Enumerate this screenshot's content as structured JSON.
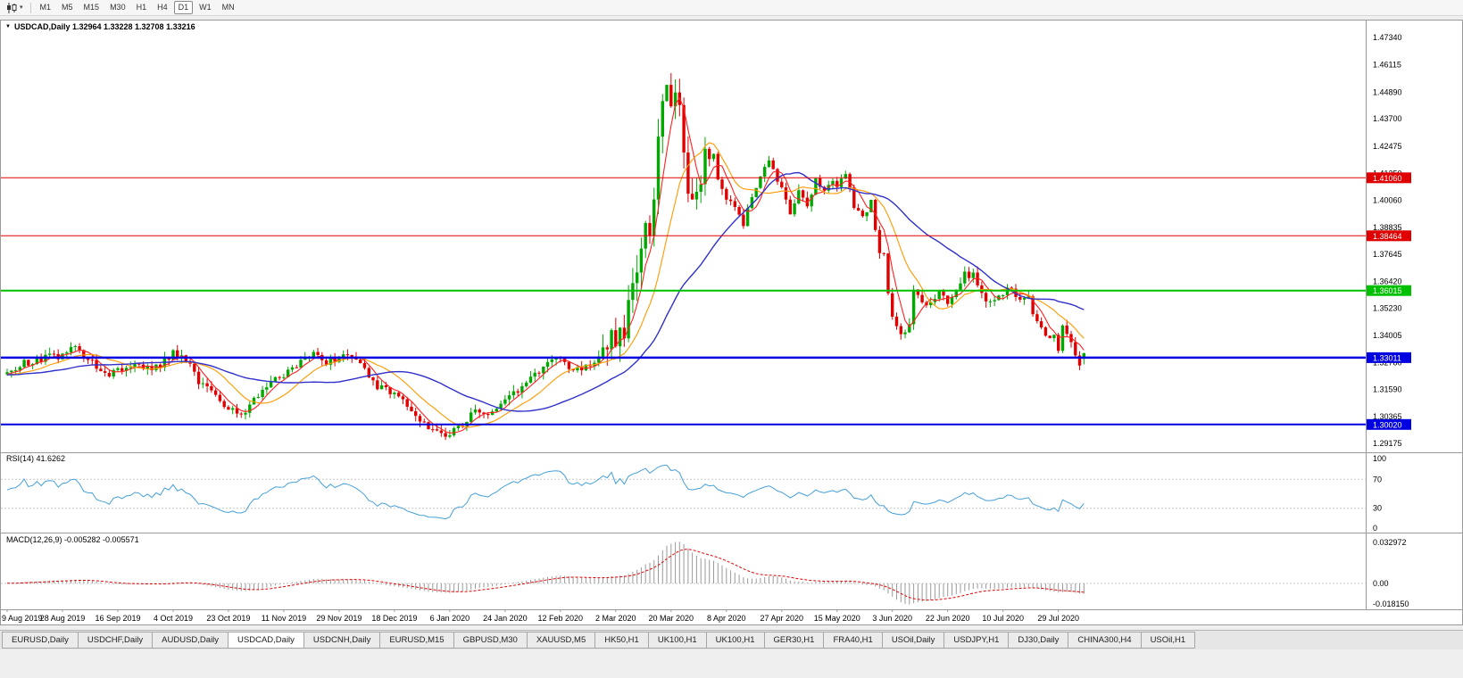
{
  "toolbar": {
    "chart_icon": "candlestick-chart-icon",
    "timeframes": [
      "M1",
      "M5",
      "M15",
      "M30",
      "H1",
      "H4",
      "D1",
      "W1",
      "MN"
    ],
    "active": "D1"
  },
  "chart": {
    "collapse_icon": "▼",
    "title_text": "USDCAD,Daily 1.32964 1.33228 1.32708 1.33216",
    "price_axis": [
      "1.47340",
      "1.46115",
      "1.44890",
      "1.43700",
      "1.42475",
      "1.41250",
      "1.40060",
      "1.38835",
      "1.37645",
      "1.36420",
      "1.35230",
      "1.34005",
      "1.32780",
      "1.31590",
      "1.30365",
      "1.29175"
    ],
    "date_axis": [
      "9 Aug 2019",
      "28 Aug 2019",
      "16 Sep 2019",
      "4 Oct 2019",
      "23 Oct 2019",
      "11 Nov 2019",
      "29 Nov 2019",
      "18 Dec 2019",
      "6 Jan 2020",
      "24 Jan 2020",
      "12 Feb 2020",
      "2 Mar 2020",
      "20 Mar 2020",
      "8 Apr 2020",
      "27 Apr 2020",
      "15 May 2020",
      "3 Jun 2020",
      "22 Jun 2020",
      "10 Jul 2020",
      "29 Jul 2020"
    ]
  },
  "rsi": {
    "label": "RSI(14) 41.6262",
    "value": 41.6262,
    "levels": [
      "100",
      "70",
      "30",
      "0"
    ]
  },
  "macd": {
    "label": "MACD(12,26,9) -0.005282 -0.005571",
    "main_value": -0.005282,
    "signal_value": -0.005571,
    "axis_labels": [
      "0.032972",
      "0.00",
      "-0.018150"
    ]
  },
  "tabs": {
    "active_index": 3,
    "items": [
      "EURUSD,Daily",
      "USDCHF,Daily",
      "AUDUSD,Daily",
      "USDCAD,Daily",
      "USDCNH,Daily",
      "EURUSD,M15",
      "GBPUSD,M30",
      "XAUUSD,M5",
      "HK50,H1",
      "UK100,H1",
      "UK100,H1",
      "GER30,H1",
      "FRA40,H1",
      "USOil,Daily",
      "USDJPY,H1",
      "DJ30,Daily",
      "CHINA300,H4",
      "USOil,H1"
    ]
  },
  "chart_data": {
    "type": "candlestick",
    "symbol": "USDCAD",
    "period": "Daily",
    "ohlc_display": {
      "open": 1.32964,
      "high": 1.33228,
      "low": 1.32708,
      "close": 1.33216
    },
    "price_range": [
      1.29175,
      1.4734
    ],
    "macd_range": [
      -0.01815,
      0.032972
    ],
    "rsi_levels": [
      70,
      30
    ],
    "volatile_range": [
      140,
      166
    ],
    "colors": {
      "up": "#00A800",
      "down": "#E00000",
      "rsi": "#46A0D8",
      "macd_hist": "#9a9a9a",
      "macd_signal": "#E00000"
    },
    "ma": [
      {
        "period": 5,
        "color": "#FF2020",
        "width": 1.1
      },
      {
        "period": 13,
        "color": "#FF9900",
        "width": 1.1
      },
      {
        "period": 34,
        "color": "#3030CC",
        "width": 1.4
      }
    ],
    "hlines": [
      {
        "label": "1.41060",
        "value": 1.4106,
        "color": "#E00000",
        "width": 1
      },
      {
        "label": "1.38464",
        "value": 1.38464,
        "color": "#E00000",
        "width": 1
      },
      {
        "label": "1.36015",
        "value": 1.36015,
        "color": "#00C000",
        "width": 2
      },
      {
        "label": "1.33011",
        "value": 1.33011,
        "color": "#0000E0",
        "width": 2.5
      },
      {
        "label": "1.30020",
        "value": 1.3002,
        "color": "#0000E0",
        "width": 2
      }
    ],
    "anchors": [
      [
        0,
        1.3225
      ],
      [
        4,
        1.3275
      ],
      [
        9,
        1.33
      ],
      [
        13,
        1.331
      ],
      [
        16,
        1.3345
      ],
      [
        19,
        1.329
      ],
      [
        23,
        1.3225
      ],
      [
        26,
        1.3255
      ],
      [
        30,
        1.327
      ],
      [
        34,
        1.324
      ],
      [
        37,
        1.329
      ],
      [
        39,
        1.332
      ],
      [
        42,
        1.329
      ],
      [
        45,
        1.32
      ],
      [
        49,
        1.313
      ],
      [
        52,
        1.308
      ],
      [
        55,
        1.3055
      ],
      [
        57,
        1.3085
      ],
      [
        60,
        1.316
      ],
      [
        63,
        1.321
      ],
      [
        65,
        1.323
      ],
      [
        69,
        1.329
      ],
      [
        72,
        1.331
      ],
      [
        75,
        1.3285
      ],
      [
        78,
        1.33
      ],
      [
        80,
        1.332
      ],
      [
        83,
        1.327
      ],
      [
        86,
        1.3185
      ],
      [
        89,
        1.316
      ],
      [
        91,
        1.313
      ],
      [
        94,
        1.3085
      ],
      [
        97,
        1.302
      ],
      [
        100,
        1.2975
      ],
      [
        103,
        1.296
      ],
      [
        104,
        1.297
      ],
      [
        107,
        1.301
      ],
      [
        110,
        1.306
      ],
      [
        113,
        1.3045
      ],
      [
        116,
        1.3095
      ],
      [
        120,
        1.315
      ],
      [
        123,
        1.3205
      ],
      [
        126,
        1.3255
      ],
      [
        129,
        1.3295
      ],
      [
        130,
        1.328
      ],
      [
        133,
        1.325
      ],
      [
        136,
        1.3265
      ],
      [
        139,
        1.331
      ],
      [
        141,
        1.338
      ],
      [
        143,
        1.337
      ],
      [
        145,
        1.344
      ],
      [
        147,
        1.365
      ],
      [
        149,
        1.378
      ],
      [
        150,
        1.392
      ],
      [
        151,
        1.383
      ],
      [
        152,
        1.3995
      ],
      [
        153,
        1.426
      ],
      [
        154,
        1.45
      ],
      [
        155,
        1.454
      ],
      [
        156,
        1.443
      ],
      [
        157,
        1.448
      ],
      [
        158,
        1.444
      ],
      [
        159,
        1.417
      ],
      [
        160,
        1.406
      ],
      [
        161,
        1.399
      ],
      [
        162,
        1.409
      ],
      [
        163,
        1.406
      ],
      [
        164,
        1.42
      ],
      [
        165,
        1.414
      ],
      [
        166,
        1.419
      ],
      [
        167,
        1.409
      ],
      [
        169,
        1.401
      ],
      [
        171,
        1.396
      ],
      [
        173,
        1.389
      ],
      [
        175,
        1.402
      ],
      [
        177,
        1.41
      ],
      [
        179,
        1.418
      ],
      [
        181,
        1.409
      ],
      [
        182,
        1.408
      ],
      [
        184,
        1.394
      ],
      [
        186,
        1.405
      ],
      [
        188,
        1.398
      ],
      [
        190,
        1.411
      ],
      [
        192,
        1.405
      ],
      [
        194,
        1.41
      ],
      [
        195,
        1.408
      ],
      [
        197,
        1.412
      ],
      [
        199,
        1.398
      ],
      [
        201,
        1.393
      ],
      [
        203,
        1.399
      ],
      [
        205,
        1.378
      ],
      [
        206,
        1.376
      ],
      [
        207,
        1.358
      ],
      [
        208,
        1.35
      ],
      [
        209,
        1.343
      ],
      [
        210,
        1.339
      ],
      [
        212,
        1.345
      ],
      [
        213,
        1.362
      ],
      [
        215,
        1.356
      ],
      [
        217,
        1.354
      ],
      [
        219,
        1.36
      ],
      [
        221,
        1.355
      ],
      [
        223,
        1.36
      ],
      [
        225,
        1.367
      ],
      [
        227,
        1.368
      ],
      [
        229,
        1.358
      ],
      [
        231,
        1.355
      ],
      [
        233,
        1.359
      ],
      [
        234,
        1.359
      ],
      [
        236,
        1.361
      ],
      [
        238,
        1.355
      ],
      [
        240,
        1.357
      ],
      [
        242,
        1.345
      ],
      [
        244,
        1.341
      ],
      [
        246,
        1.34
      ],
      [
        247,
        1.334
      ],
      [
        248,
        1.345
      ],
      [
        249,
        1.341
      ],
      [
        250,
        1.338
      ],
      [
        251,
        1.33
      ],
      [
        252,
        1.327
      ],
      [
        253,
        1.3322
      ]
    ]
  }
}
